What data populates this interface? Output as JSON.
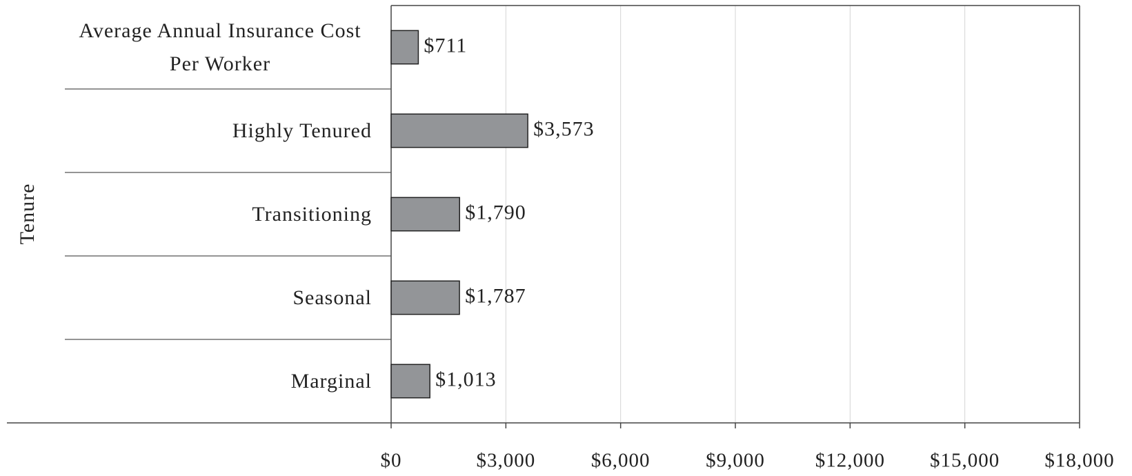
{
  "chart_data": {
    "type": "hbar",
    "y_label": "Tenure",
    "categories": [
      "Average Annual Insurance Cost Per Worker",
      "Highly Tenured",
      "Transitioning",
      "Seasonal",
      "Marginal"
    ],
    "values": [
      711,
      3573,
      1790,
      1787,
      1013
    ],
    "value_labels": [
      "$711",
      "$3,573",
      "$1,790",
      "$1,787",
      "$1,013"
    ],
    "color": "#939598",
    "xlim": [
      0,
      18000
    ],
    "xticks": [
      {
        "value": 0,
        "label": "$0"
      },
      {
        "value": 3000,
        "label": "$3,000"
      },
      {
        "value": 6000,
        "label": "$6,000"
      },
      {
        "value": 9000,
        "label": "$9,000"
      },
      {
        "value": 12000,
        "label": "$12,000"
      },
      {
        "value": 15000,
        "label": "$15,000"
      },
      {
        "value": 18000,
        "label": "$18,000"
      }
    ],
    "grid": true
  }
}
